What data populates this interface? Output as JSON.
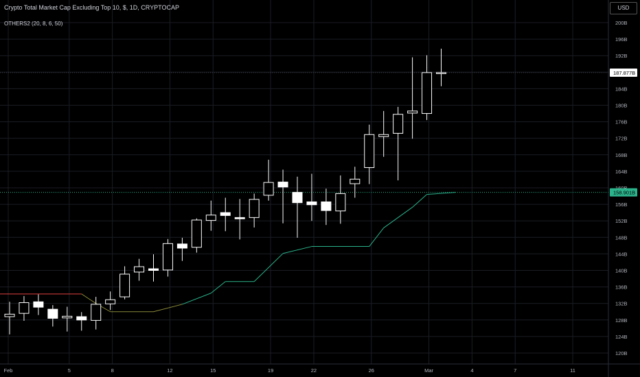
{
  "header": {
    "title": "Crypto Total Market Cap Excluding Top 10, $, 1D, CRYPTOCAP",
    "indicator": "OTHERS2 (20, 8, 6, 50)",
    "currency_button": "USD"
  },
  "colors": {
    "background": "#000000",
    "grid": "#1b1d24",
    "candle_body": "#ffffff",
    "line_green": "#2bb48c",
    "line_red": "#e0413e",
    "line_olive": "#8a8a3a",
    "price_label_white": "#ffffff",
    "price_label_green": "#2bb48c"
  },
  "chart_data": {
    "type": "candlestick",
    "x_axis_labels": [
      "Feb",
      "5",
      "8",
      "12",
      "15",
      "19",
      "22",
      "26",
      "Mar",
      "4",
      "7",
      "11"
    ],
    "y_axis_labels": [
      "200B",
      "196B",
      "192B",
      "188B",
      "184B",
      "180B",
      "176B",
      "172B",
      "168B",
      "164B",
      "160B",
      "156B",
      "152B",
      "148B",
      "144B",
      "140B",
      "136B",
      "132B",
      "128B",
      "124B",
      "120B"
    ],
    "ylim": [
      118.5,
      202
    ],
    "last_price_label": "187.877B",
    "indicator_label": "158.901B",
    "candles": [
      {
        "date": "Feb 1",
        "o": 128.8,
        "h": 132.4,
        "l": 124.5,
        "c": 129.4
      },
      {
        "date": "Feb 2",
        "o": 129.6,
        "h": 133.8,
        "l": 127.8,
        "c": 132.2
      },
      {
        "date": "Feb 3",
        "o": 132.4,
        "h": 134.2,
        "l": 129.2,
        "c": 131.1
      },
      {
        "date": "Feb 4",
        "o": 130.6,
        "h": 131.6,
        "l": 126.4,
        "c": 128.4
      },
      {
        "date": "Feb 5",
        "o": 128.5,
        "h": 131.2,
        "l": 125.2,
        "c": 128.9
      },
      {
        "date": "Feb 6",
        "o": 128.8,
        "h": 129.9,
        "l": 125.4,
        "c": 128.0
      },
      {
        "date": "Feb 7",
        "o": 127.9,
        "h": 133.6,
        "l": 125.7,
        "c": 131.8
      },
      {
        "date": "Feb 8",
        "o": 131.9,
        "h": 134.9,
        "l": 130.4,
        "c": 132.9
      },
      {
        "date": "Feb 9",
        "o": 133.6,
        "h": 141.0,
        "l": 133.0,
        "c": 139.1
      },
      {
        "date": "Feb 10",
        "o": 139.6,
        "h": 142.8,
        "l": 137.5,
        "c": 140.9
      },
      {
        "date": "Feb 11",
        "o": 140.4,
        "h": 143.9,
        "l": 137.3,
        "c": 140.0
      },
      {
        "date": "Feb 12",
        "o": 140.1,
        "h": 147.6,
        "l": 138.5,
        "c": 146.5
      },
      {
        "date": "Feb 13",
        "o": 146.4,
        "h": 147.9,
        "l": 142.3,
        "c": 145.4
      },
      {
        "date": "Feb 14",
        "o": 145.6,
        "h": 152.6,
        "l": 144.3,
        "c": 152.2
      },
      {
        "date": "Feb 15",
        "o": 152.1,
        "h": 156.9,
        "l": 149.6,
        "c": 153.4
      },
      {
        "date": "Feb 16",
        "o": 154.0,
        "h": 157.6,
        "l": 149.5,
        "c": 153.3
      },
      {
        "date": "Feb 17",
        "o": 152.8,
        "h": 157.3,
        "l": 147.5,
        "c": 152.5
      },
      {
        "date": "Feb 18",
        "o": 152.8,
        "h": 158.6,
        "l": 150.4,
        "c": 157.2
      },
      {
        "date": "Feb 19",
        "o": 158.2,
        "h": 166.8,
        "l": 156.9,
        "c": 161.3
      },
      {
        "date": "Feb 20",
        "o": 161.4,
        "h": 164.4,
        "l": 151.4,
        "c": 160.2
      },
      {
        "date": "Feb 21",
        "o": 158.9,
        "h": 162.7,
        "l": 147.9,
        "c": 156.4
      },
      {
        "date": "Feb 22",
        "o": 156.6,
        "h": 163.4,
        "l": 152.0,
        "c": 155.9
      },
      {
        "date": "Feb 23",
        "o": 156.6,
        "h": 159.8,
        "l": 151.0,
        "c": 154.5
      },
      {
        "date": "Feb 24",
        "o": 154.4,
        "h": 163.0,
        "l": 151.3,
        "c": 158.6
      },
      {
        "date": "Feb 25",
        "o": 161.0,
        "h": 165.1,
        "l": 157.6,
        "c": 162.1
      },
      {
        "date": "Feb 26",
        "o": 164.9,
        "h": 175.3,
        "l": 160.9,
        "c": 172.9
      },
      {
        "date": "Feb 27",
        "o": 172.4,
        "h": 178.6,
        "l": 167.5,
        "c": 172.9
      },
      {
        "date": "Feb 28",
        "o": 173.2,
        "h": 179.6,
        "l": 161.8,
        "c": 177.8
      },
      {
        "date": "Feb 29",
        "o": 178.1,
        "h": 191.6,
        "l": 171.9,
        "c": 178.6
      },
      {
        "date": "Mar 1",
        "o": 178.0,
        "h": 192.1,
        "l": 176.4,
        "c": 187.9
      },
      {
        "date": "Mar 2",
        "o": 187.9,
        "h": 193.7,
        "l": 184.6,
        "c": 187.9
      }
    ],
    "indicator_line": [
      {
        "i": 0,
        "v": 134.3,
        "color": "red"
      },
      {
        "i": 5,
        "v": 134.3,
        "color": "red"
      },
      {
        "i": 6,
        "v": 132.0,
        "color": "olive"
      },
      {
        "i": 7,
        "v": 130.0,
        "color": "olive"
      },
      {
        "i": 10,
        "v": 130.0,
        "color": "olive"
      },
      {
        "i": 12,
        "v": 131.8,
        "color": "olive"
      },
      {
        "i": 14,
        "v": 134.5,
        "color": "green"
      },
      {
        "i": 15,
        "v": 137.3,
        "color": "green"
      },
      {
        "i": 17,
        "v": 137.3,
        "color": "green"
      },
      {
        "i": 19,
        "v": 144.1,
        "color": "green"
      },
      {
        "i": 21,
        "v": 145.8,
        "color": "green"
      },
      {
        "i": 25,
        "v": 145.8,
        "color": "green"
      },
      {
        "i": 26,
        "v": 150.3,
        "color": "green"
      },
      {
        "i": 28,
        "v": 155.3,
        "color": "green"
      },
      {
        "i": 29,
        "v": 158.4,
        "color": "green"
      },
      {
        "i": 31,
        "v": 158.9,
        "color": "green"
      }
    ],
    "grid": true
  }
}
